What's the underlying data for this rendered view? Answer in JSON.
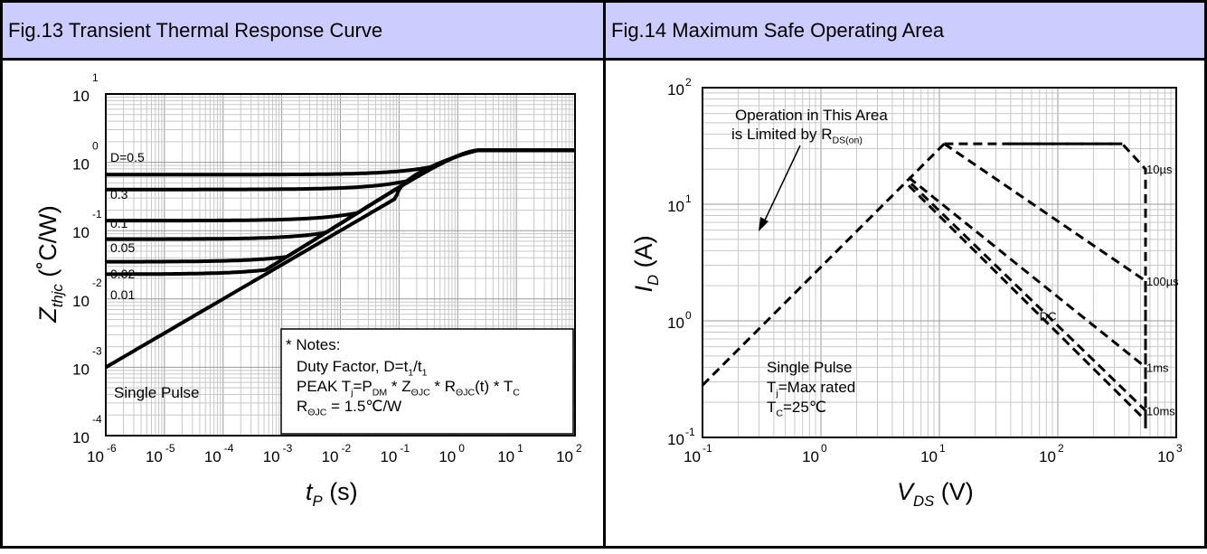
{
  "chart_data": [
    {
      "type": "line",
      "title": "Fig.13 Transient Thermal Response Curve",
      "xlabel_main": "t",
      "xlabel_sub": "P",
      "xlabel_unit": " (s)",
      "ylabel_main": "Z",
      "ylabel_sub": "thjc",
      "ylabel_unit": " (˚C/W)",
      "x_scale": "log",
      "y_scale": "log",
      "xlim": [
        1e-06,
        100
      ],
      "ylim": [
        0.0001,
        10
      ],
      "grid": true,
      "x_ticks": [
        {
          "b": "10",
          "e": "-6",
          "v": 1e-06
        },
        {
          "b": "10",
          "e": "-5",
          "v": 1e-05
        },
        {
          "b": "10",
          "e": "-4",
          "v": 0.0001
        },
        {
          "b": "10",
          "e": "-3",
          "v": 0.001
        },
        {
          "b": "10",
          "e": "-2",
          "v": 0.01
        },
        {
          "b": "10",
          "e": "-1",
          "v": 0.1
        },
        {
          "b": "10",
          "e": "0",
          "v": 1
        },
        {
          "b": "10",
          "e": "1",
          "v": 10
        },
        {
          "b": "10",
          "e": "2",
          "v": 100
        }
      ],
      "y_ticks": [
        {
          "b": "10",
          "e": "1",
          "v": 10
        },
        {
          "b": "10",
          "e": "0",
          "v": 1
        },
        {
          "b": "10",
          "e": "-1",
          "v": 0.1
        },
        {
          "b": "10",
          "e": "-2",
          "v": 0.01
        },
        {
          "b": "10",
          "e": "-3",
          "v": 0.001
        },
        {
          "b": "10",
          "e": "-4",
          "v": 0.0001
        }
      ],
      "series": [
        {
          "label": "D=0.5",
          "baseline": 0.66
        },
        {
          "label": "0.3",
          "baseline": 0.4
        },
        {
          "label": "0.1",
          "baseline": 0.14
        },
        {
          "label": "0.05",
          "baseline": 0.075
        },
        {
          "label": "0.02",
          "baseline": 0.035
        },
        {
          "label": "0.01",
          "baseline": 0.023
        },
        {
          "label": "Single Pulse",
          "baseline": 0
        }
      ],
      "steady_state": 1.5,
      "notes": {
        "title": "* Notes:",
        "line1": [
          "Duty Factor, D=t",
          "1",
          "/t",
          "1"
        ],
        "line2": [
          "PEAK T",
          "j",
          "=P",
          "DM",
          " * Z",
          "ΘJC",
          " * R",
          "ΘJC",
          "(t) * T",
          "C"
        ],
        "line3": [
          "R",
          "ΘJC",
          " = 1.5℃/W"
        ]
      }
    },
    {
      "type": "line",
      "title": "Fig.14 Maximum Safe Operating Area",
      "xlabel_main": "V",
      "xlabel_sub": "DS",
      "xlabel_unit": " (V)",
      "ylabel_main": "I",
      "ylabel_sub": "D",
      "ylabel_unit": " (A)",
      "x_scale": "log",
      "y_scale": "log",
      "xlim": [
        0.1,
        1000
      ],
      "ylim": [
        0.1,
        100
      ],
      "grid": true,
      "x_ticks": [
        {
          "b": "10",
          "e": "-1",
          "v": 0.1
        },
        {
          "b": "10",
          "e": "0",
          "v": 1
        },
        {
          "b": "10",
          "e": "1",
          "v": 10
        },
        {
          "b": "10",
          "e": "2",
          "v": 100
        },
        {
          "b": "10",
          "e": "3",
          "v": 1000
        }
      ],
      "y_ticks": [
        {
          "b": "10",
          "e": "2",
          "v": 100
        },
        {
          "b": "10",
          "e": "1",
          "v": 10
        },
        {
          "b": "10",
          "e": "0",
          "v": 1
        },
        {
          "b": "10",
          "e": "-1",
          "v": 0.1
        }
      ],
      "rds_limit": [
        [
          0.1,
          0.28
        ],
        [
          11,
          33
        ]
      ],
      "current_limit": [
        [
          11,
          33
        ],
        [
          350,
          33
        ]
      ],
      "series": [
        {
          "label": "10µs",
          "points": [
            [
              38,
              33
            ],
            [
              350,
              33
            ],
            [
              550,
              20
            ],
            [
              550,
              0.12
            ]
          ],
          "label_at": [
            560,
            20
          ]
        },
        {
          "label": "100µs",
          "points": [
            [
              11,
              33
            ],
            [
              550,
              2.2
            ],
            [
              550,
              0.12
            ]
          ],
          "label_at": [
            560,
            2.2
          ]
        },
        {
          "label": "1ms",
          "points": [
            [
              5.5,
              17
            ],
            [
              550,
              0.4
            ],
            [
              550,
              0.12
            ]
          ],
          "label_at": [
            560,
            0.4
          ]
        },
        {
          "label": "10ms",
          "points": [
            [
              5.8,
              15
            ],
            [
              550,
              0.17
            ],
            [
              550,
              0.12
            ]
          ],
          "label_at": [
            560,
            0.17
          ]
        },
        {
          "label": "DC",
          "points": [
            [
              5.5,
              14.5
            ],
            [
              550,
              0.14
            ],
            [
              550,
              0.12
            ]
          ],
          "label_at": [
            70,
            1.1
          ]
        }
      ],
      "annotation": [
        "Operation in This Area",
        "is Limited by R",
        "DS(on)"
      ],
      "conditions": {
        "line1": "Single Pulse",
        "line2": [
          "T",
          "j",
          "=Max rated"
        ],
        "line3": [
          "T",
          "C",
          "=25℃"
        ]
      }
    }
  ]
}
